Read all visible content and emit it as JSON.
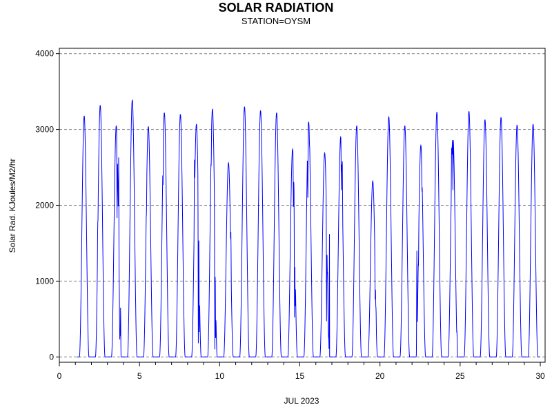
{
  "chart_data": {
    "type": "line",
    "title": "SOLAR RADIATION",
    "subtitle": "STATION=OYSM",
    "xlabel": "JUL 2023",
    "ylabel": "Solar Rad. KJoules/M2/hr",
    "xlim": [
      0,
      30.3
    ],
    "ylim": [
      -70,
      4070
    ],
    "x_ticks": [
      0,
      5,
      10,
      15,
      20,
      25,
      30
    ],
    "y_ticks": [
      0,
      1000,
      2000,
      3000,
      4000
    ],
    "grid": "horizontal-dashed",
    "line_color": "#0000ff",
    "grid_color": "#808080",
    "series": [
      {
        "days": [
          {
            "day": 1,
            "peak": 3180
          },
          {
            "day": 2,
            "peak": 3320,
            "dips": [
              [
                -0.15,
                1780
              ]
            ]
          },
          {
            "day": 3,
            "peak": 3050,
            "dips": [
              [
                0.05,
                1830
              ],
              [
                0.15,
                2630
              ],
              [
                0.22,
                230
              ],
              [
                0.27,
                650
              ]
            ]
          },
          {
            "day": 4,
            "peak": 3390
          },
          {
            "day": 5,
            "peak": 3040,
            "dips": [
              [
                -0.12,
                1870
              ]
            ]
          },
          {
            "day": 6,
            "peak": 3220,
            "dips": [
              [
                -0.08,
                2270
              ]
            ]
          },
          {
            "day": 7,
            "peak": 3200
          },
          {
            "day": 8,
            "peak": 3070,
            "dips": [
              [
                -0.12,
                2600
              ],
              [
                0.12,
                180
              ],
              [
                0.18,
                330
              ]
            ]
          },
          {
            "day": 9,
            "peak": 3270,
            "dips": [
              [
                -0.08,
                2520
              ],
              [
                0.15,
                100
              ],
              [
                0.2,
                250
              ]
            ]
          },
          {
            "day": 10,
            "peak": 2560,
            "dips": [
              [
                0.15,
                1650
              ]
            ]
          },
          {
            "day": 11,
            "peak": 3300
          },
          {
            "day": 12,
            "peak": 3250
          },
          {
            "day": 13,
            "peak": 3220
          },
          {
            "day": 14,
            "peak": 2740,
            "dips": [
              [
                0.05,
                1980
              ],
              [
                0.12,
                520
              ],
              [
                0.16,
                670
              ]
            ]
          },
          {
            "day": 15,
            "peak": 3100,
            "dips": [
              [
                -0.05,
                2100
              ],
              [
                0.06,
                2780
              ]
            ]
          },
          {
            "day": 16,
            "peak": 2690,
            "dips": [
              [
                0.12,
                470
              ],
              [
                0.18,
                1120
              ],
              [
                0.25,
                260
              ],
              [
                0.3,
                1620
              ]
            ]
          },
          {
            "day": 17,
            "peak": 2900,
            "dips": [
              [
                0.04,
                2200
              ],
              [
                0.1,
                2580
              ]
            ]
          },
          {
            "day": 18,
            "peak": 3050
          },
          {
            "day": 19,
            "peak": 2320,
            "dips": [
              [
                0.15,
                760
              ],
              [
                0.2,
                650
              ]
            ]
          },
          {
            "day": 20,
            "peak": 3170
          },
          {
            "day": 21,
            "peak": 3050
          },
          {
            "day": 22,
            "peak": 2790,
            "dips": [
              [
                -0.25,
                1400
              ],
              [
                -0.15,
                1200
              ],
              [
                0.07,
                2180
              ]
            ]
          },
          {
            "day": 23,
            "peak": 3230
          },
          {
            "day": 24,
            "peak": 2930,
            "dips": [
              [
                -0.08,
                2760
              ],
              [
                0.0,
                2200
              ],
              [
                0.25,
                350
              ]
            ]
          },
          {
            "day": 25,
            "peak": 3240
          },
          {
            "day": 26,
            "peak": 3130
          },
          {
            "day": 27,
            "peak": 3160
          },
          {
            "day": 28,
            "peak": 3060
          },
          {
            "day": 29,
            "peak": 3070
          }
        ]
      }
    ]
  }
}
